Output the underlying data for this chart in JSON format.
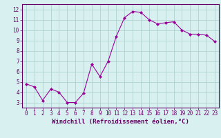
{
  "x": [
    0,
    1,
    2,
    3,
    4,
    5,
    6,
    7,
    8,
    9,
    10,
    11,
    12,
    13,
    14,
    15,
    16,
    17,
    18,
    19,
    20,
    21,
    22,
    23
  ],
  "y": [
    4.8,
    4.5,
    3.2,
    4.3,
    4.0,
    3.0,
    3.0,
    3.9,
    6.7,
    5.5,
    7.0,
    9.4,
    11.2,
    11.8,
    11.7,
    11.0,
    10.6,
    10.7,
    10.8,
    10.0,
    9.6,
    9.6,
    9.5,
    8.9
  ],
  "line_color": "#990099",
  "marker": "D",
  "marker_size": 2,
  "bg_color": "#d8f0f0",
  "grid_color": "#aacccc",
  "xlabel": "Windchill (Refroidissement éolien,°C)",
  "xlim": [
    -0.5,
    23.5
  ],
  "ylim": [
    2.5,
    12.5
  ],
  "yticks": [
    3,
    4,
    5,
    6,
    7,
    8,
    9,
    10,
    11,
    12
  ],
  "xticks": [
    0,
    1,
    2,
    3,
    4,
    5,
    6,
    7,
    8,
    9,
    10,
    11,
    12,
    13,
    14,
    15,
    16,
    17,
    18,
    19,
    20,
    21,
    22,
    23
  ],
  "tick_color": "#660066",
  "axis_label_color": "#660066",
  "spine_color": "#660066",
  "label_fontsize": 5.5,
  "xlabel_fontsize": 6.5
}
